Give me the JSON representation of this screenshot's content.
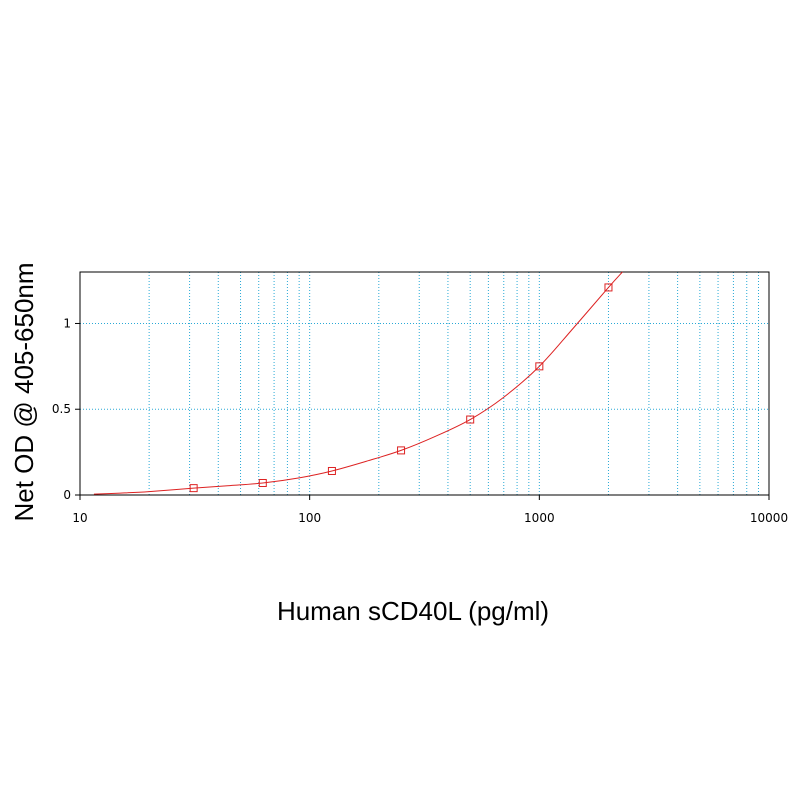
{
  "chart_data": {
    "type": "scatter",
    "title": "",
    "xlabel": "Human sCD40L (pg/ml)",
    "ylabel": "Net OD @ 405-650nm",
    "xscale": "log",
    "xlim": [
      10,
      10000
    ],
    "ylim": [
      0,
      1.3
    ],
    "xticks": [
      10,
      100,
      1000,
      10000
    ],
    "xtick_labels": [
      "10",
      "100",
      "1000",
      "10000"
    ],
    "yticks": [
      0,
      0.5,
      1
    ],
    "ytick_labels": [
      "0",
      "0.5",
      "1"
    ],
    "grid": true,
    "legend": "none",
    "series": [
      {
        "type": "scatter",
        "marker": "square",
        "x": [
          31.25,
          62.5,
          125,
          250,
          500,
          1000,
          2000
        ],
        "y": [
          0.04,
          0.07,
          0.14,
          0.26,
          0.44,
          0.75,
          1.21
        ]
      },
      {
        "type": "line",
        "x": [
          11.5,
          15,
          20,
          31.25,
          45,
          62.5,
          90,
          125,
          180,
          250,
          350,
          500,
          700,
          1000,
          1400,
          2000,
          2300
        ],
        "y": [
          0.005,
          0.011,
          0.02,
          0.04,
          0.055,
          0.07,
          0.1,
          0.14,
          0.2,
          0.26,
          0.34,
          0.44,
          0.57,
          0.75,
          0.97,
          1.21,
          1.3
        ]
      }
    ],
    "colors": {
      "series": "#dd2222",
      "grid": "#2aa9d6",
      "axis": "#000000"
    }
  }
}
